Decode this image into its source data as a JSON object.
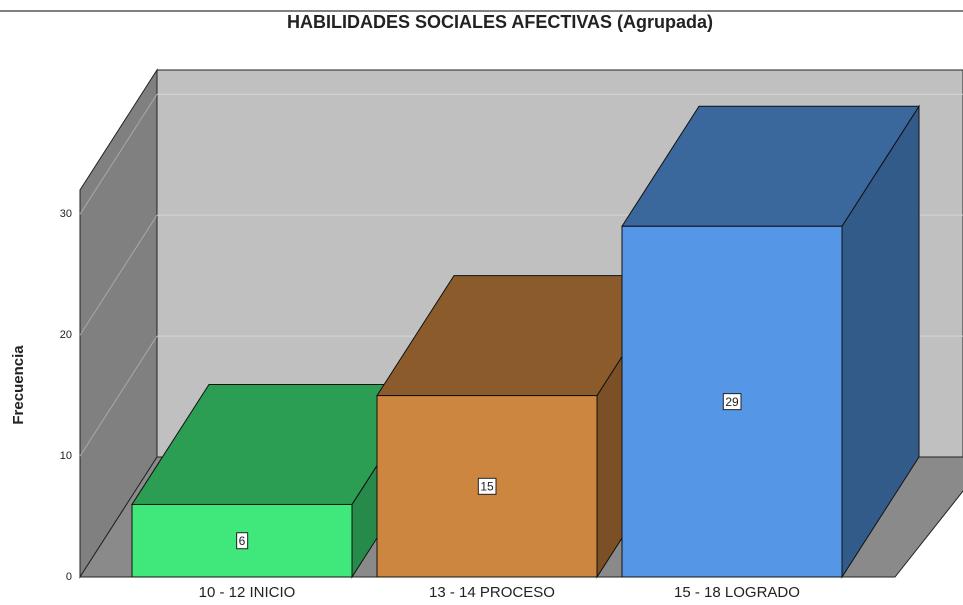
{
  "chart_data": {
    "type": "bar3d",
    "title": "HABILIDADES SOCIALES AFECTIVAS (Agrupada)",
    "y_label": "Frecuencia",
    "categories": [
      "10 - 12 INICIO",
      "13 - 14 PROCESO",
      "15 - 18 LOGRADO"
    ],
    "values": [
      6,
      15,
      29
    ],
    "colors": [
      "#40e87b",
      "#cd863f",
      "#5597e6"
    ],
    "ylim": [
      0,
      32
    ],
    "yticks": [
      0,
      10,
      20,
      30
    ],
    "grid": true
  }
}
